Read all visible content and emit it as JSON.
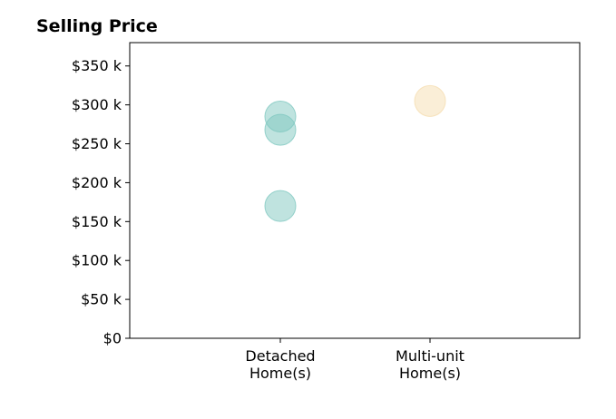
{
  "chart_data": {
    "type": "scatter",
    "title": "Selling Price",
    "xlabel": "",
    "ylabel": "",
    "categories": [
      "Detached\nHome(s)",
      "Multi-unit\nHome(s)"
    ],
    "yticks": [
      0,
      50000,
      100000,
      150000,
      200000,
      250000,
      300000,
      350000
    ],
    "ytick_labels": [
      "$0",
      "$50 k",
      "$100 k",
      "$150 k",
      "$200 k",
      "$250 k",
      "$300 k",
      "$350 k"
    ],
    "ylim": [
      0,
      380000
    ],
    "grid": false,
    "points": [
      {
        "category": "Detached\nHome(s)",
        "value": 170000,
        "color": "#7fc8c0"
      },
      {
        "category": "Detached\nHome(s)",
        "value": 268000,
        "color": "#7fc8c0"
      },
      {
        "category": "Detached\nHome(s)",
        "value": 285000,
        "color": "#7fc8c0"
      },
      {
        "category": "Multi-unit\nHome(s)",
        "value": 305000,
        "color": "#f5ddb0"
      }
    ]
  }
}
